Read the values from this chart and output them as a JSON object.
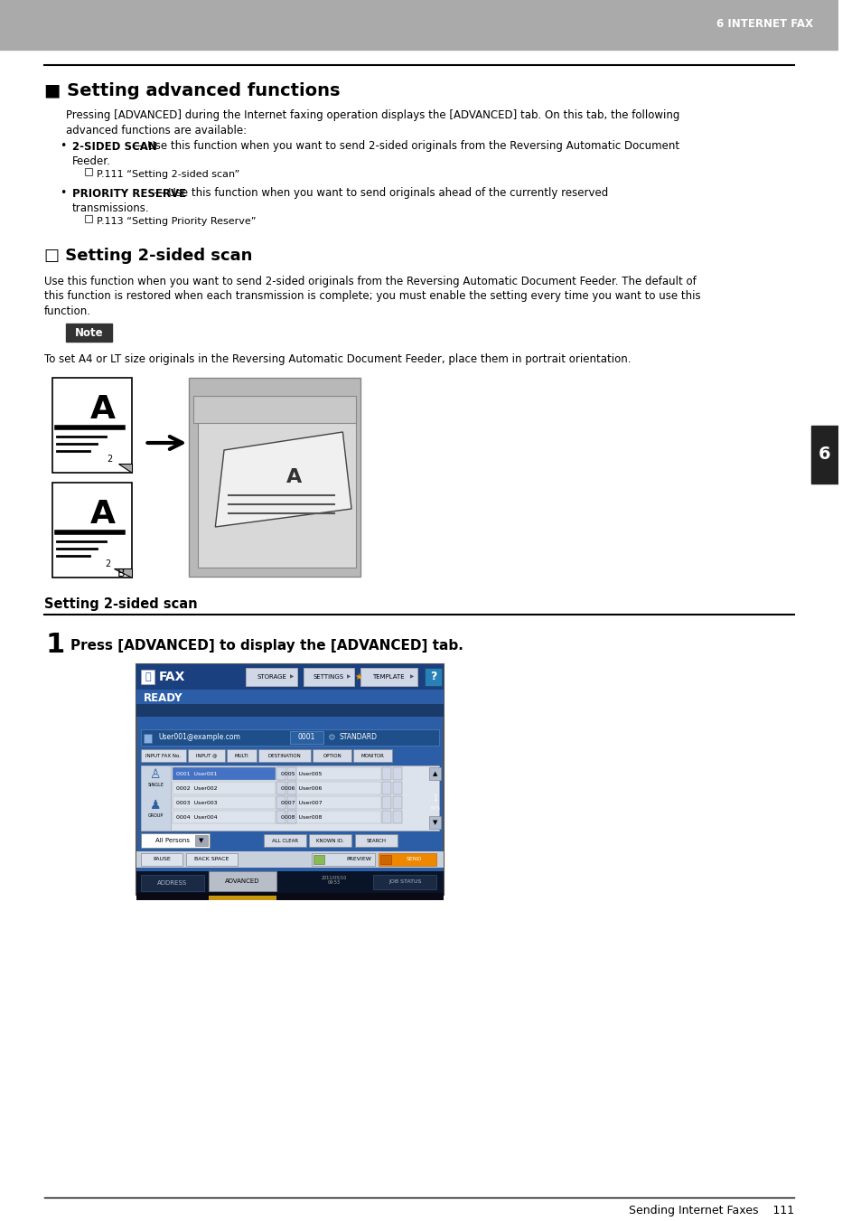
{
  "page_bg": "#ffffff",
  "header_bg": "#aaaaaa",
  "header_text": "6 INTERNET FAX",
  "header_text_color": "#ffffff",
  "section_title": "■ Setting advanced functions",
  "body_text_color": "#000000",
  "sidebar_color": "#222222",
  "sidebar_number": "6",
  "note_box_bg": "#333333",
  "note_box_text": "Note",
  "note_box_text_color": "#ffffff",
  "subsection_title": "□ Setting 2-sided scan",
  "procedure_section_title": "Setting 2-sided scan",
  "step1_bold": "Press [ADVANCED] to display the [ADVANCED] tab.",
  "footer_text": "Sending Internet Faxes    111",
  "para1_line1": "Pressing [ADVANCED] during the Internet faxing operation displays the [ADVANCED] tab. On this tab, the following",
  "para1_line2": "advanced functions are available:",
  "bullet1_bold": "2-SIDED SCAN",
  "bullet1_rest": " — Use this function when you want to send 2-sided originals from the Reversing Automatic Document",
  "bullet1_line2": "Feeder.",
  "bullet1_ref": "□ P.111 “Setting 2-sided scan”",
  "bullet2_bold": "PRIORITY RESERVE",
  "bullet2_rest": " — Use this function when you want to send originals ahead of the currently reserved",
  "bullet2_line2": "transmissions.",
  "bullet2_ref": "□ P.113 “Setting Priority Reserve”",
  "subsection_para_line1": "Use this function when you want to send 2-sided originals from the Reversing Automatic Document Feeder. The default of",
  "subsection_para_line2": "this function is restored when each transmission is complete; you must enable the setting every time you want to use this",
  "subsection_para_line3": "function.",
  "note_text": "To set A4 or LT size originals in the Reversing Automatic Document Feeder, place them in portrait orientation.",
  "fax_screen_bg": "#2b5ea7",
  "fax_title_bar_bg": "#1a4080",
  "fax_ready_bar_bg": "#2b5ea7",
  "fax_content_bg": "#dce6f1",
  "fax_user1_bg": "#4472c4",
  "fax_row_bg": "#dce6f1",
  "fax_bottom_bar_bg": "#1a1a2e",
  "fax_advanced_tab_bg": "#c8c8c8",
  "fax_orange_bar": "#d4a017"
}
